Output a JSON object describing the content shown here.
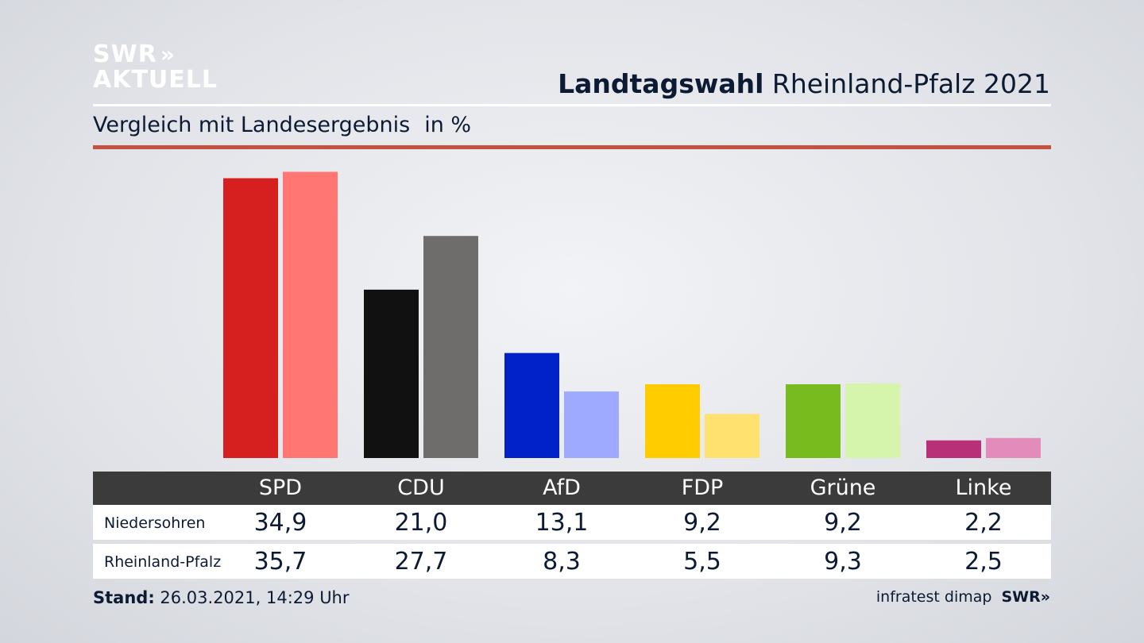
{
  "header": {
    "logo_line1": "SWR",
    "logo_chevrons": "»",
    "logo_line2": "AKTUELL",
    "title_bold": "Landtagswahl",
    "title_rest": "Rheinland-Pfalz 2021",
    "subtitle": "Vergleich mit Landesergebnis",
    "unit": "in %"
  },
  "chart_data": {
    "type": "bar",
    "categories": [
      "SPD",
      "CDU",
      "AfD",
      "FDP",
      "Grüne",
      "Linke"
    ],
    "series": [
      {
        "name": "Niedersohren",
        "values": [
          34.9,
          21.0,
          13.1,
          9.2,
          9.2,
          2.2
        ],
        "labels": [
          "34,9",
          "21,0",
          "13,1",
          "9,2",
          "9,2",
          "2,2"
        ]
      },
      {
        "name": "Rheinland-Pfalz",
        "values": [
          35.7,
          27.7,
          8.3,
          5.5,
          9.3,
          2.5
        ],
        "labels": [
          "35,7",
          "27,7",
          "8,3",
          "5,5",
          "9,3",
          "2,5"
        ]
      }
    ],
    "colors": {
      "primary": [
        "#d61f1f",
        "#111111",
        "#0022c8",
        "#ffcc00",
        "#78bb1e",
        "#b83078"
      ],
      "secondary": [
        "#ff7672",
        "#6f6d6b",
        "#9eaaff",
        "#ffe170",
        "#d6f5ac",
        "#e38cbb"
      ]
    },
    "ylim": [
      0,
      36
    ],
    "grid": false
  },
  "footer": {
    "stand_label": "Stand:",
    "stand_value": "26.03.2021, 14:29 Uhr",
    "source": "infratest dimap",
    "source_logo": "SWR",
    "source_chevrons": "»"
  }
}
